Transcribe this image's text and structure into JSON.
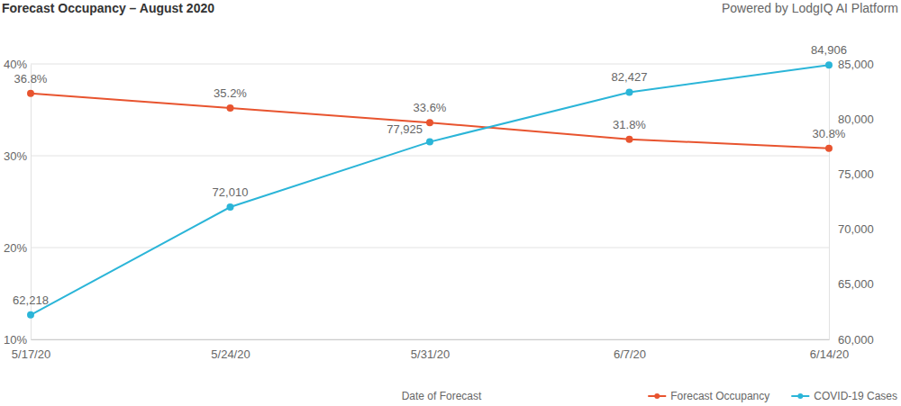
{
  "chart_data": {
    "type": "line",
    "title": "Forecast Occupancy – August 2020",
    "subtitle": "Powered by LodgIQ AI Platform",
    "x_label": "Date of Forecast",
    "categories": [
      "5/17/20",
      "5/24/20",
      "5/31/20",
      "6/7/20",
      "6/14/20"
    ],
    "ylim": [
      10,
      40
    ],
    "yticks": [
      {
        "value": 10,
        "label": "10%"
      },
      {
        "value": 20,
        "label": "20%"
      },
      {
        "value": 30,
        "label": "30%"
      },
      {
        "value": 40,
        "label": "40%"
      }
    ],
    "y2lim": [
      60000,
      85000
    ],
    "y2ticks": [
      {
        "value": 60000,
        "label": "60,000"
      },
      {
        "value": 65000,
        "label": "65,000"
      },
      {
        "value": 70000,
        "label": "70,000"
      },
      {
        "value": 75000,
        "label": "75,000"
      },
      {
        "value": 80000,
        "label": "80,000"
      },
      {
        "value": 85000,
        "label": "85,000"
      }
    ],
    "grid": true,
    "legend": "bottom-right",
    "data_labels": true,
    "series": [
      {
        "name": "Forecast Occupancy",
        "color": "#e8542f",
        "marker": "circle",
        "values": [
          36.8,
          35.2,
          33.6,
          31.8,
          30.8
        ],
        "value_labels": [
          "36.8%",
          "35.2%",
          "33.6%",
          "31.8%",
          "30.8%"
        ]
      },
      {
        "name": "COVID-19 Cases",
        "color": "#2bb5d8",
        "marker": "circle",
        "axis": "y2",
        "values": [
          62218,
          72010,
          77925,
          82427,
          84906
        ],
        "value_labels": [
          "62,218",
          "72,010",
          "77,925",
          "82,427",
          "84,906"
        ]
      }
    ]
  }
}
